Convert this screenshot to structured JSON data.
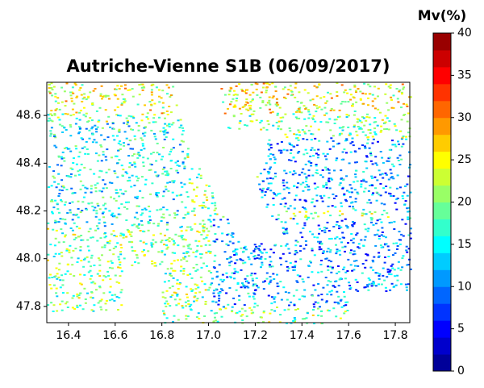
{
  "chart_data": {
    "type": "raster_map",
    "title": "Autriche-Vienne S1B (06/09/2017)",
    "xlim": [
      16.307,
      17.862
    ],
    "xticks": [
      16.4,
      16.6,
      16.8,
      {
        "value": 17.0,
        "label": "17.0"
      },
      17.2,
      17.4,
      17.6,
      17.8
    ],
    "ylim": [
      47.732,
      48.739
    ],
    "yticks": [
      47.8,
      {
        "value": 48.0,
        "label": "48.0"
      },
      48.2,
      48.4,
      48.6
    ],
    "colorbar": {
      "label": "Mv(%)",
      "clim": [
        0,
        40
      ],
      "ticks": [
        0,
        5,
        10,
        15,
        20,
        25,
        30,
        35,
        40
      ],
      "colormap": "jet",
      "n_levels": 20
    }
  }
}
